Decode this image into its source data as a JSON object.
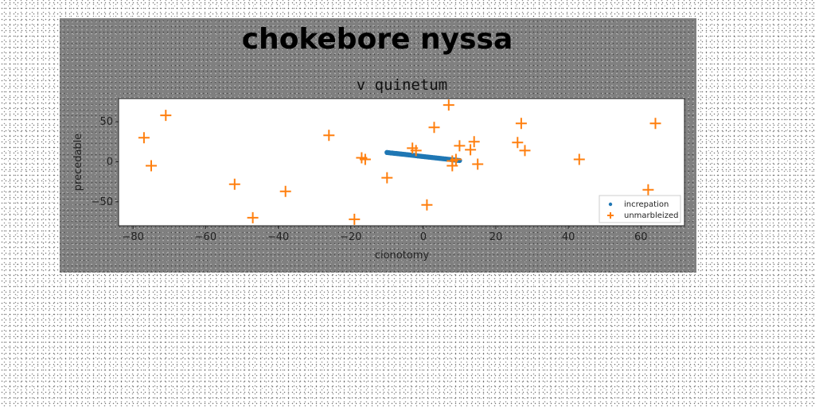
{
  "figure": {
    "suptitle": "chokebore nyssa"
  },
  "chart_data": {
    "type": "scatter",
    "title": "v quinetum",
    "xlabel": "cionotomy",
    "ylabel": "precedable",
    "xlim": [
      -84,
      72
    ],
    "ylim": [
      -80,
      79
    ],
    "xticks": [
      -80,
      -60,
      -40,
      -20,
      0,
      20,
      40,
      60
    ],
    "yticks": [
      -50,
      0,
      50
    ],
    "grid": false,
    "legend_position": "lower-right",
    "series": [
      {
        "name": "increpation",
        "marker": "dot",
        "color": "#1f77b4",
        "points": [
          [
            -10.0,
            11.6
          ],
          [
            -9.5,
            11.3
          ],
          [
            -9.0,
            11.0
          ],
          [
            -8.5,
            10.8
          ],
          [
            -8.0,
            10.5
          ],
          [
            -7.5,
            10.3
          ],
          [
            -7.0,
            10.1
          ],
          [
            -6.5,
            9.8
          ],
          [
            -6.0,
            9.6
          ],
          [
            -5.5,
            9.3
          ],
          [
            -5.0,
            9.1
          ],
          [
            -4.5,
            8.8
          ],
          [
            -4.0,
            8.6
          ],
          [
            -3.5,
            8.3
          ],
          [
            -3.0,
            8.1
          ],
          [
            -2.5,
            7.8
          ],
          [
            -2.0,
            7.6
          ],
          [
            -1.5,
            7.3
          ],
          [
            -1.0,
            7.1
          ],
          [
            -0.5,
            6.8
          ],
          [
            0.0,
            6.6
          ],
          [
            0.5,
            6.3
          ],
          [
            1.0,
            6.1
          ],
          [
            1.5,
            5.8
          ],
          [
            2.0,
            5.6
          ],
          [
            2.5,
            5.3
          ],
          [
            3.0,
            5.1
          ],
          [
            3.5,
            4.8
          ],
          [
            4.0,
            4.6
          ],
          [
            4.5,
            4.3
          ],
          [
            5.0,
            4.1
          ],
          [
            5.5,
            3.8
          ],
          [
            6.0,
            3.6
          ],
          [
            6.5,
            3.3
          ],
          [
            7.0,
            3.1
          ],
          [
            7.5,
            2.8
          ],
          [
            8.0,
            2.6
          ],
          [
            8.5,
            2.3
          ],
          [
            9.0,
            2.1
          ],
          [
            9.5,
            1.8
          ],
          [
            10.0,
            1.6
          ]
        ]
      },
      {
        "name": "unmarbleized",
        "marker": "plus",
        "color": "#ff7f0e",
        "points": [
          [
            -71,
            58
          ],
          [
            -77,
            30
          ],
          [
            -75,
            -5
          ],
          [
            -52,
            -28
          ],
          [
            -47,
            -70
          ],
          [
            -38,
            -37
          ],
          [
            -26,
            33
          ],
          [
            -19,
            -72
          ],
          [
            -17,
            5
          ],
          [
            -16,
            3
          ],
          [
            -10,
            -20
          ],
          [
            -3,
            17
          ],
          [
            -2,
            14
          ],
          [
            1,
            -54
          ],
          [
            3,
            43
          ],
          [
            7,
            71
          ],
          [
            8,
            1
          ],
          [
            8,
            -5
          ],
          [
            9,
            3
          ],
          [
            10,
            20
          ],
          [
            13,
            15
          ],
          [
            14,
            25
          ],
          [
            15,
            -3
          ],
          [
            26,
            24
          ],
          [
            27,
            48
          ],
          [
            28,
            14
          ],
          [
            43,
            3
          ],
          [
            62,
            -35
          ],
          [
            64,
            48
          ]
        ]
      }
    ]
  }
}
